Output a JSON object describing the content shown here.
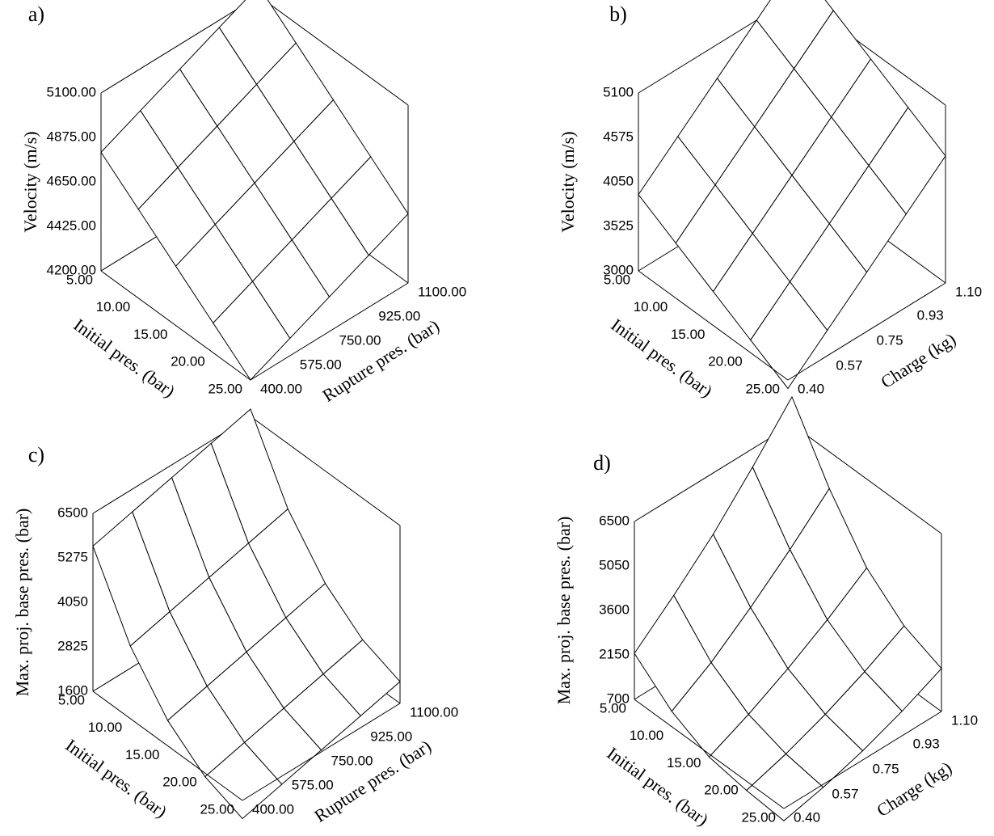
{
  "chart_data": [
    {
      "type": "surface",
      "title": "a)",
      "xlabel": "Initial pres. (bar)",
      "ylabel": "Rupture pres. (bar)",
      "zlabel": "Velocity (m/s)",
      "color": "#000000",
      "x": [
        5,
        10,
        15,
        20,
        25
      ],
      "y": [
        400,
        575,
        750,
        925,
        1100
      ],
      "z": [
        [
          4800,
          4888,
          4975,
          5063,
          5150
        ],
        [
          4650,
          4738,
          4825,
          4913,
          5000
        ],
        [
          4500,
          4588,
          4675,
          4763,
          4850
        ],
        [
          4350,
          4438,
          4525,
          4613,
          4700
        ],
        [
          4200,
          4288,
          4375,
          4463,
          4550
        ]
      ],
      "xlim": [
        5,
        25
      ],
      "ylim": [
        400,
        1100
      ],
      "zlim": [
        4200,
        5100
      ],
      "xticks": [
        {
          "value": 5,
          "label": "5.00"
        },
        {
          "value": 10,
          "label": "10.00"
        },
        {
          "value": 15,
          "label": "15.00"
        },
        {
          "value": 20,
          "label": "20.00"
        },
        {
          "value": 25,
          "label": "25.00"
        }
      ],
      "yticks": [
        {
          "value": 400,
          "label": "400.00"
        },
        {
          "value": 575,
          "label": "575.00"
        },
        {
          "value": 750,
          "label": "750.00"
        },
        {
          "value": 925,
          "label": "925.00"
        },
        {
          "value": 1100,
          "label": "1100.00"
        }
      ],
      "zticks": [
        {
          "value": 4200,
          "label": "4200.00"
        },
        {
          "value": 4425,
          "label": "4425.00"
        },
        {
          "value": 4650,
          "label": "4650.00"
        },
        {
          "value": 4875,
          "label": "4875.00"
        },
        {
          "value": 5100,
          "label": "5100.00"
        }
      ]
    },
    {
      "type": "surface",
      "title": "b)",
      "xlabel": "Initial pres. (bar)",
      "ylabel": "Charge (kg)",
      "zlabel": "Velocity (m/s)",
      "color": "#000000",
      "x": [
        5,
        10,
        15,
        20,
        25
      ],
      "y": [
        0.4,
        0.575,
        0.75,
        0.925,
        1.1
      ],
      "z": [
        [
          3900,
          4300,
          4700,
          5100,
          5500
        ],
        [
          3650,
          4050,
          4450,
          4850,
          5250
        ],
        [
          3400,
          3800,
          4200,
          4600,
          5000
        ],
        [
          3150,
          3550,
          3950,
          4350,
          4750
        ],
        [
          2900,
          3300,
          3700,
          4100,
          4500
        ]
      ],
      "xlim": [
        5,
        25
      ],
      "ylim": [
        0.4,
        1.1
      ],
      "zlim": [
        3000,
        5100
      ],
      "xticks": [
        {
          "value": 5,
          "label": "5.00"
        },
        {
          "value": 10,
          "label": "10.00"
        },
        {
          "value": 15,
          "label": "15.00"
        },
        {
          "value": 20,
          "label": "20.00"
        },
        {
          "value": 25,
          "label": "25.00"
        }
      ],
      "yticks": [
        {
          "value": 0.4,
          "label": "0.40"
        },
        0.57,
        0.75,
        0.93,
        {
          "value": 1.1,
          "label": "1.10"
        }
      ],
      "zticks": [
        3000,
        3525,
        4050,
        4575,
        5100
      ]
    },
    {
      "type": "surface",
      "title": "c)",
      "xlabel": "Initial pres. (bar)",
      "ylabel": "Rupture pres. (bar)",
      "zlabel": "Max. proj. base pres. (bar)",
      "color": "#000000",
      "x": [
        5,
        10,
        15,
        20,
        25
      ],
      "y": [
        400,
        575,
        750,
        925,
        1100
      ],
      "z": [
        [
          5600,
          5875,
          6150,
          6425,
          6700
        ],
        [
          3600,
          3875,
          4150,
          4425,
          4700
        ],
        [
          2300,
          2575,
          2850,
          3125,
          3400
        ],
        [
          1500,
          1775,
          2050,
          2325,
          2600
        ],
        [
          1100,
          1375,
          1650,
          1925,
          2200
        ]
      ],
      "xlim": [
        5,
        25
      ],
      "ylim": [
        400,
        1100
      ],
      "zlim": [
        1600,
        6500
      ],
      "xticks": [
        {
          "value": 5,
          "label": "5.00"
        },
        {
          "value": 10,
          "label": "10.00"
        },
        {
          "value": 15,
          "label": "15.00"
        },
        {
          "value": 20,
          "label": "20.00"
        },
        {
          "value": 25,
          "label": "25.00"
        }
      ],
      "yticks": [
        {
          "value": 400,
          "label": "400.00"
        },
        {
          "value": 575,
          "label": "575.00"
        },
        {
          "value": 750,
          "label": "750.00"
        },
        {
          "value": 925,
          "label": "925.00"
        },
        {
          "value": 1100,
          "label": "1100.00"
        }
      ],
      "zticks": [
        1600,
        2825,
        4050,
        5275,
        6500
      ]
    },
    {
      "type": "surface",
      "title": "d)",
      "xlabel": "Initial pres. (bar)",
      "ylabel": "Charge (kg)",
      "zlabel": "Max. proj. base pres. (bar)",
      "color": "#000000",
      "x": [
        5,
        10,
        15,
        20,
        25
      ],
      "y": [
        0.4,
        0.575,
        0.75,
        0.925,
        1.1
      ],
      "z": [
        [
          2200,
          3300,
          4500,
          5900,
          7400
        ],
        [
          1200,
          2000,
          3000,
          4100,
          5300
        ],
        [
          600,
          1200,
          1900,
          2700,
          3600
        ],
        [
          400,
          800,
          1300,
          1900,
          2600
        ],
        [
          300,
          600,
          1000,
          1500,
          2100
        ]
      ],
      "xlim": [
        5,
        25
      ],
      "ylim": [
        0.4,
        1.1
      ],
      "zlim": [
        700,
        6500
      ],
      "xticks": [
        {
          "value": 5,
          "label": "5.00"
        },
        {
          "value": 10,
          "label": "10.00"
        },
        {
          "value": 15,
          "label": "15.00"
        },
        {
          "value": 20,
          "label": "20.00"
        },
        {
          "value": 25,
          "label": "25.00"
        }
      ],
      "yticks": [
        {
          "value": 0.4,
          "label": "0.40"
        },
        0.57,
        0.75,
        0.93,
        {
          "value": 1.1,
          "label": "1.10"
        }
      ],
      "zticks": [
        700,
        2150,
        3600,
        5050,
        6500
      ]
    }
  ]
}
